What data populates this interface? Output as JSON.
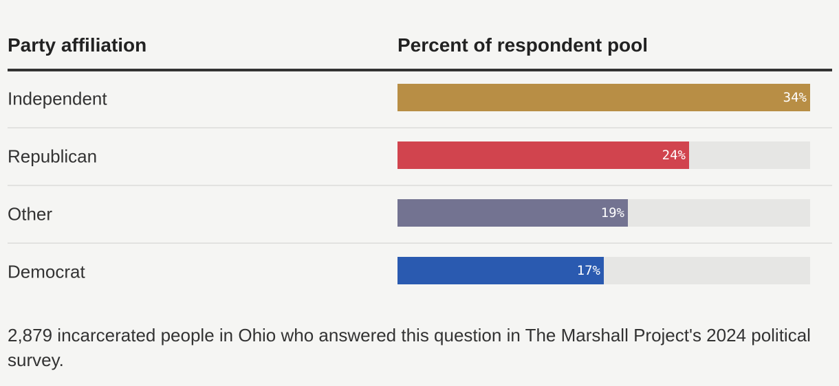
{
  "header": {
    "category_label": "Party affiliation",
    "value_label": "Percent of respondent pool"
  },
  "chart_data": {
    "type": "bar",
    "orientation": "horizontal",
    "categories": [
      "Independent",
      "Republican",
      "Other",
      "Democrat"
    ],
    "values": [
      34,
      24,
      19,
      17
    ],
    "value_labels": [
      "34%",
      "24%",
      "19%",
      "17%"
    ],
    "colors": [
      "#b88e45",
      "#d1444e",
      "#737391",
      "#2a5ab0"
    ],
    "track_color": "#e6e6e4",
    "xlim": [
      0,
      34
    ],
    "xlabel": "Percent of respondent pool",
    "ylabel": "Party affiliation",
    "grid": false
  },
  "note": "2,879 incarcerated people in Ohio who answered this question in The Marshall Project's 2024 political survey."
}
